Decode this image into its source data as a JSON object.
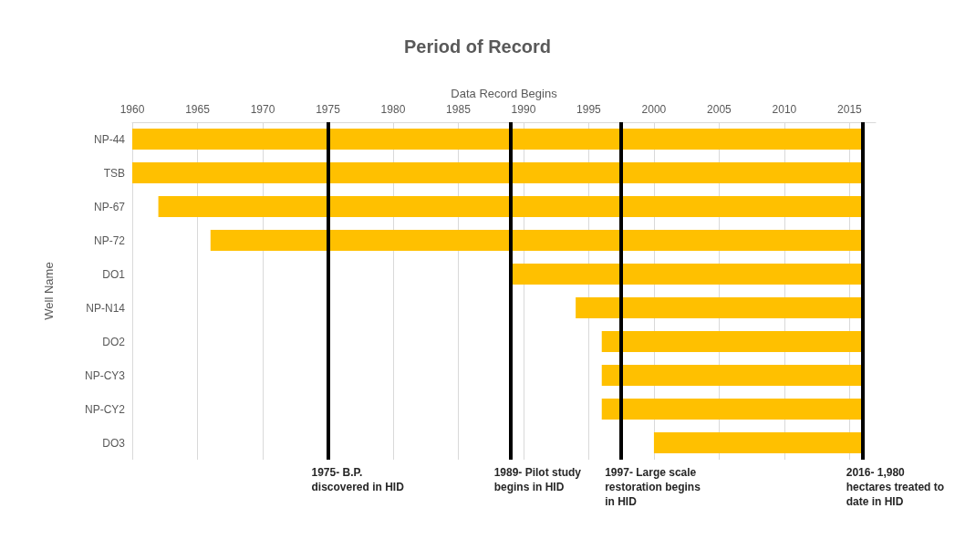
{
  "chart_data": {
    "type": "bar",
    "orientation": "horizontal",
    "title": "Period of Record",
    "xlabel": "Data Record Begins",
    "ylabel": "Well Name",
    "categories": [
      "NP-44",
      "TSB",
      "NP-67",
      "NP-72",
      "DO1",
      "NP-N14",
      "DO2",
      "NP-CY3",
      "NP-CY2",
      "DO3"
    ],
    "base": [
      1960,
      1960,
      1962,
      1966,
      1989,
      1994,
      1996,
      1996,
      1996,
      2000
    ],
    "values": [
      56,
      56,
      54,
      50,
      27,
      22,
      20,
      20,
      20,
      16
    ],
    "color": "#ffc000",
    "xlim": [
      1960,
      2017
    ],
    "xticks": [
      1960,
      1965,
      1970,
      1975,
      1980,
      1985,
      1990,
      1995,
      2000,
      2005,
      2010,
      2015
    ],
    "grid": "x",
    "ref_lines": [
      {
        "axis": "x",
        "value": 1975,
        "label": "1975- B.P. discovered in HID",
        "color": "#000000"
      },
      {
        "axis": "x",
        "value": 1989,
        "label": "1989- Pilot study begins in HID",
        "color": "#000000"
      },
      {
        "axis": "x",
        "value": 1997.5,
        "label": "1997- Large scale restoration begins in HID",
        "color": "#000000"
      },
      {
        "axis": "x",
        "value": 2016,
        "label": "2016- 1,980 hectares treated to date in HID",
        "color": "#000000"
      }
    ]
  }
}
